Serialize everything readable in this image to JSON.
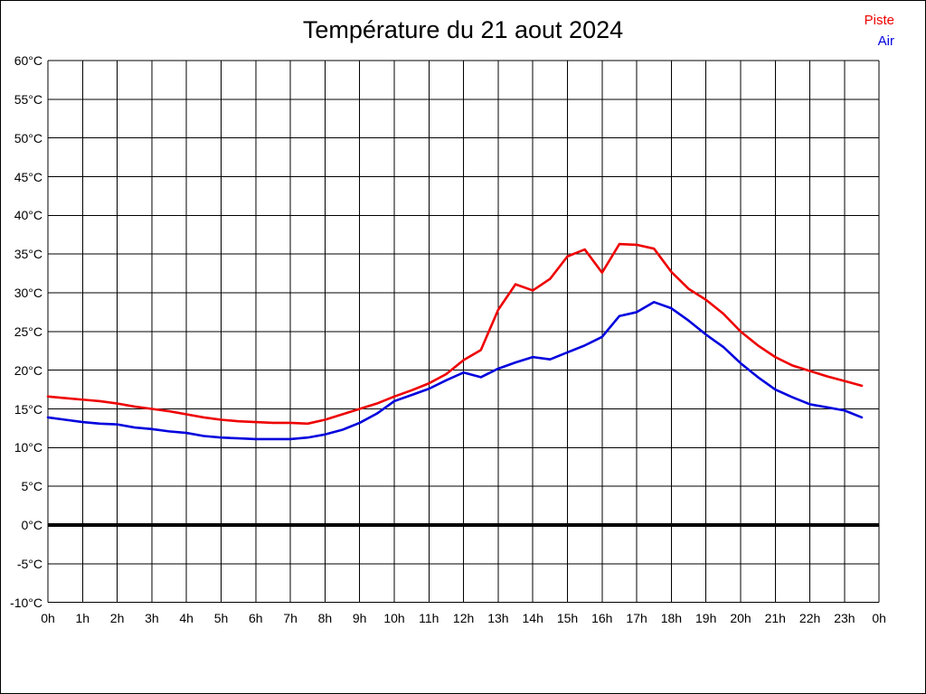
{
  "chart_data": {
    "type": "line",
    "title": "Température du 21 aout 2024",
    "xlabel": "",
    "ylabel": "",
    "xlim": [
      0,
      24
    ],
    "ylim": [
      -10,
      60
    ],
    "grid": true,
    "zero_line_bold": true,
    "legend_position": "top-right",
    "x_tick_values": [
      0,
      1,
      2,
      3,
      4,
      5,
      6,
      7,
      8,
      9,
      10,
      11,
      12,
      13,
      14,
      15,
      16,
      17,
      18,
      19,
      20,
      21,
      22,
      23,
      24
    ],
    "x_tick_labels": [
      "0h",
      "1h",
      "2h",
      "3h",
      "4h",
      "5h",
      "6h",
      "7h",
      "8h",
      "9h",
      "10h",
      "11h",
      "12h",
      "13h",
      "14h",
      "15h",
      "16h",
      "17h",
      "18h",
      "19h",
      "20h",
      "21h",
      "22h",
      "23h",
      "0h"
    ],
    "y_tick_values": [
      60,
      55,
      50,
      45,
      40,
      35,
      30,
      25,
      20,
      15,
      10,
      5,
      0,
      -5,
      -10
    ],
    "y_tick_labels": [
      "60°C",
      "55°C",
      "50°C",
      "45°C",
      "40°C",
      "35°C",
      "30°C",
      "25°C",
      "20°C",
      "15°C",
      "10°C",
      "5°C",
      "0°C",
      "-5°C",
      "-10°C"
    ],
    "x": [
      0,
      0.5,
      1,
      1.5,
      2,
      2.5,
      3,
      3.5,
      4,
      4.5,
      5,
      5.5,
      6,
      6.5,
      7,
      7.5,
      8,
      8.5,
      9,
      9.5,
      10,
      10.5,
      11,
      11.5,
      12,
      12.5,
      13,
      13.5,
      14,
      14.5,
      15,
      15.5,
      16,
      16.5,
      17,
      17.5,
      18,
      18.5,
      19,
      19.5,
      20,
      20.5,
      21,
      21.5,
      22,
      22.5,
      23,
      23.5
    ],
    "series": [
      {
        "name": "Piste",
        "color": "#ee0000",
        "values": [
          16.6,
          16.4,
          16.2,
          16.0,
          15.7,
          15.3,
          15.0,
          14.7,
          14.3,
          13.9,
          13.6,
          13.4,
          13.3,
          13.2,
          13.2,
          13.1,
          13.6,
          14.3,
          15.0,
          15.7,
          16.6,
          17.4,
          18.3,
          19.5,
          21.3,
          22.6,
          27.8,
          31.1,
          30.3,
          31.8,
          34.7,
          35.6,
          32.6,
          36.3,
          36.2,
          35.7,
          32.7,
          30.5,
          29.1,
          27.3,
          25.0,
          23.2,
          21.7,
          20.6,
          19.9,
          19.2,
          18.6,
          18.0
        ]
      },
      {
        "name": "Air",
        "color": "#0000dd",
        "values": [
          13.9,
          13.6,
          13.3,
          13.1,
          13.0,
          12.6,
          12.4,
          12.1,
          11.9,
          11.5,
          11.3,
          11.2,
          11.1,
          11.1,
          11.1,
          11.3,
          11.7,
          12.3,
          13.2,
          14.4,
          16.0,
          16.8,
          17.6,
          18.7,
          19.7,
          19.1,
          20.2,
          21.0,
          21.7,
          21.4,
          22.3,
          23.2,
          24.3,
          27.0,
          27.5,
          28.8,
          28.0,
          26.4,
          24.6,
          23.0,
          20.9,
          19.1,
          17.5,
          16.5,
          15.6,
          15.2,
          14.8,
          13.9
        ]
      }
    ]
  }
}
